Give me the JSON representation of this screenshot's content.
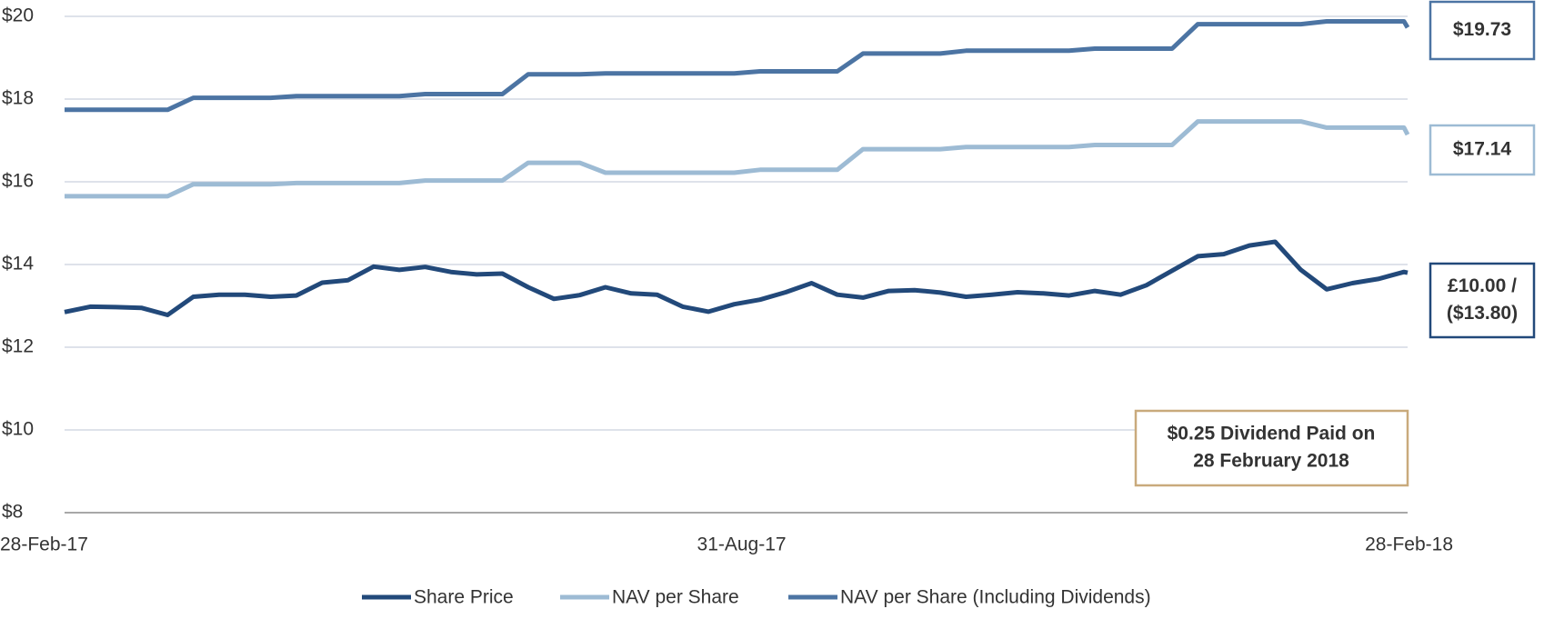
{
  "chart_data": {
    "type": "line",
    "x": [
      "2017-02-28",
      "2017-03-07",
      "2017-03-14",
      "2017-03-21",
      "2017-03-28",
      "2017-04-04",
      "2017-04-11",
      "2017-04-18",
      "2017-04-25",
      "2017-05-02",
      "2017-05-09",
      "2017-05-16",
      "2017-05-23",
      "2017-05-30",
      "2017-06-06",
      "2017-06-13",
      "2017-06-20",
      "2017-06-27",
      "2017-07-04",
      "2017-07-11",
      "2017-07-18",
      "2017-07-25",
      "2017-08-01",
      "2017-08-08",
      "2017-08-15",
      "2017-08-22",
      "2017-08-29",
      "2017-09-05",
      "2017-09-12",
      "2017-09-19",
      "2017-09-26",
      "2017-10-03",
      "2017-10-10",
      "2017-10-17",
      "2017-10-24",
      "2017-10-31",
      "2017-11-07",
      "2017-11-14",
      "2017-11-21",
      "2017-11-28",
      "2017-12-05",
      "2017-12-12",
      "2017-12-19",
      "2017-12-26",
      "2018-01-02",
      "2018-01-09",
      "2018-01-16",
      "2018-01-23",
      "2018-01-30",
      "2018-02-06",
      "2018-02-13",
      "2018-02-20",
      "2018-02-27",
      "2018-02-28"
    ],
    "series": [
      {
        "name": "Share Price",
        "color": "#22497a",
        "values": [
          12.85,
          12.98,
          12.97,
          12.95,
          12.78,
          13.22,
          13.27,
          13.27,
          13.22,
          13.25,
          13.56,
          13.62,
          13.95,
          13.87,
          13.94,
          13.82,
          13.76,
          13.78,
          13.45,
          13.17,
          13.26,
          13.45,
          13.3,
          13.27,
          12.98,
          12.86,
          13.04,
          13.15,
          13.33,
          13.55,
          13.27,
          13.2,
          13.36,
          13.38,
          13.32,
          13.22,
          13.27,
          13.33,
          13.3,
          13.25,
          13.36,
          13.27,
          13.5,
          13.85,
          14.2,
          14.25,
          14.46,
          14.55,
          13.87,
          13.4,
          13.55,
          13.65,
          13.82,
          13.8
        ]
      },
      {
        "name": "NAV per Share",
        "color": "#9dbbd4",
        "values": [
          15.65,
          15.65,
          15.65,
          15.65,
          15.65,
          15.94,
          15.94,
          15.94,
          15.94,
          15.97,
          15.97,
          15.97,
          15.97,
          15.97,
          16.03,
          16.03,
          16.03,
          16.03,
          16.46,
          16.46,
          16.46,
          16.22,
          16.22,
          16.22,
          16.22,
          16.22,
          16.22,
          16.29,
          16.29,
          16.29,
          16.29,
          16.79,
          16.79,
          16.79,
          16.79,
          16.84,
          16.84,
          16.84,
          16.84,
          16.84,
          16.89,
          16.89,
          16.89,
          16.89,
          17.46,
          17.46,
          17.46,
          17.46,
          17.46,
          17.31,
          17.31,
          17.31,
          17.31,
          17.14
        ]
      },
      {
        "name": "NAV per Share (Including Dividends)",
        "color": "#4c74a3",
        "values": [
          17.74,
          17.74,
          17.74,
          17.74,
          17.74,
          18.03,
          18.03,
          18.03,
          18.03,
          18.07,
          18.07,
          18.07,
          18.07,
          18.07,
          18.12,
          18.12,
          18.12,
          18.12,
          18.6,
          18.6,
          18.6,
          18.62,
          18.62,
          18.62,
          18.62,
          18.62,
          18.62,
          18.67,
          18.67,
          18.67,
          18.67,
          19.1,
          19.1,
          19.1,
          19.1,
          19.17,
          19.17,
          19.17,
          19.17,
          19.17,
          19.22,
          19.22,
          19.22,
          19.22,
          19.81,
          19.81,
          19.81,
          19.81,
          19.81,
          19.88,
          19.88,
          19.88,
          19.88,
          19.73
        ]
      }
    ],
    "xlim": [
      "2017-02-28",
      "2018-02-28"
    ],
    "xticks": [
      {
        "value": "2017-02-28",
        "label": "28-Feb-17"
      },
      {
        "value": "2017-08-31",
        "label": "31-Aug-17"
      },
      {
        "value": "2018-02-28",
        "label": "28-Feb-18"
      }
    ],
    "ylim": [
      8,
      20
    ],
    "yticks": [
      {
        "value": 8,
        "label": "$8"
      },
      {
        "value": 10,
        "label": "$10"
      },
      {
        "value": 12,
        "label": "$12"
      },
      {
        "value": 14,
        "label": "$14"
      },
      {
        "value": 16,
        "label": "$16"
      },
      {
        "value": 18,
        "label": "$18"
      },
      {
        "value": 20,
        "label": "$20"
      }
    ],
    "grid": true,
    "legend": "bottom",
    "end_labels": [
      [
        "$19.73"
      ],
      [
        "$17.14"
      ],
      [
        "£10.00 /",
        "($13.80)"
      ]
    ],
    "annotation": [
      "$0.25 Dividend Paid on",
      "28 February 2018"
    ]
  }
}
